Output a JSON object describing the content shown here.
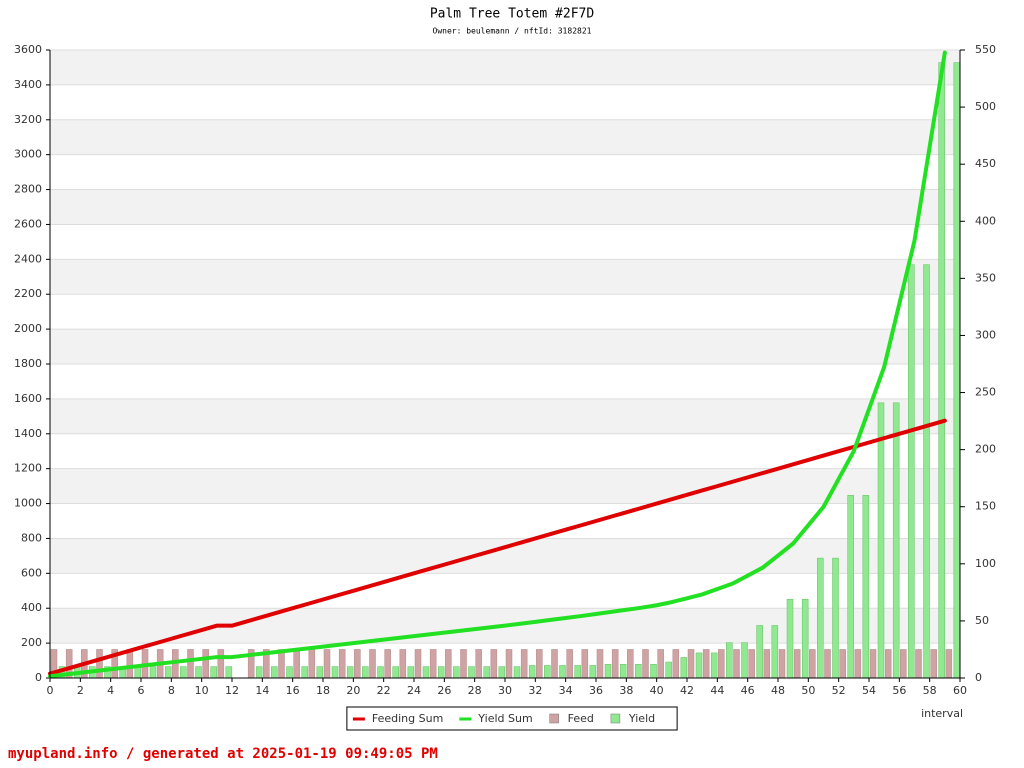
{
  "chart_data": {
    "type": "combo",
    "title": "Palm Tree Totem #2F7D",
    "subtitle": "Owner: beulemann / nftId: 3182821",
    "x_label": "interval",
    "x": [
      0,
      1,
      2,
      3,
      4,
      5,
      6,
      7,
      8,
      9,
      10,
      11,
      12,
      13,
      14,
      15,
      16,
      17,
      18,
      19,
      20,
      21,
      22,
      23,
      24,
      25,
      26,
      27,
      28,
      29,
      30,
      31,
      32,
      33,
      34,
      35,
      36,
      37,
      38,
      39,
      40,
      41,
      42,
      43,
      44,
      45,
      46,
      47,
      48,
      49,
      50,
      51,
      52,
      53,
      54,
      55,
      56,
      57,
      58,
      59
    ],
    "xlim": [
      0,
      60
    ],
    "xticks": [
      0,
      2,
      4,
      6,
      8,
      10,
      12,
      14,
      16,
      18,
      20,
      22,
      24,
      26,
      28,
      30,
      32,
      34,
      36,
      38,
      40,
      42,
      44,
      46,
      48,
      50,
      52,
      54,
      56,
      58,
      60
    ],
    "ylim": [
      0,
      3600
    ],
    "yticks": [
      0,
      200,
      400,
      600,
      800,
      1000,
      1200,
      1400,
      1600,
      1800,
      2000,
      2200,
      2400,
      2600,
      2800,
      3000,
      3200,
      3400,
      3600
    ],
    "y2lim": [
      0,
      550
    ],
    "y2ticks": [
      0,
      50,
      100,
      150,
      200,
      250,
      300,
      350,
      400,
      450,
      500,
      550
    ],
    "grid": true,
    "legend": "bottom",
    "series": [
      {
        "name": "Feeding Sum",
        "kind": "line",
        "color": "#e00000",
        "values": [
          25,
          50,
          75,
          100,
          125,
          150,
          175,
          200,
          225,
          250,
          275,
          300,
          300,
          325,
          350,
          375,
          400,
          425,
          450,
          475,
          500,
          525,
          550,
          575,
          600,
          625,
          650,
          675,
          700,
          725,
          750,
          775,
          800,
          825,
          850,
          875,
          900,
          925,
          950,
          975,
          1000,
          1025,
          1050,
          1075,
          1100,
          1125,
          1150,
          1175,
          1200,
          1225,
          1250,
          1275,
          1300,
          1325,
          1350,
          1375,
          1400,
          1425,
          1450,
          1475
        ]
      },
      {
        "name": "Yield Sum",
        "kind": "line",
        "color": "#22e022",
        "values": [
          10,
          20,
          30,
          40,
          50,
          60,
          70,
          80,
          90,
          100,
          110,
          120,
          120,
          130,
          140,
          150,
          160,
          170,
          180,
          190,
          200,
          210,
          220,
          230,
          240,
          250,
          260,
          270,
          280,
          290,
          300,
          311,
          322,
          333,
          344,
          355,
          367,
          379,
          391,
          403,
          417,
          435,
          457,
          479,
          510,
          541,
          587,
          633,
          702,
          771,
          876,
          981,
          1141,
          1301,
          1542,
          1783,
          2145,
          2507,
          3046,
          3585
        ]
      },
      {
        "name": "Feed",
        "kind": "bar",
        "axis": "y2",
        "color": "#cfa3a3",
        "values": [
          25,
          25,
          25,
          25,
          25,
          25,
          25,
          25,
          25,
          25,
          25,
          25,
          0,
          25,
          25,
          25,
          25,
          25,
          25,
          25,
          25,
          25,
          25,
          25,
          25,
          25,
          25,
          25,
          25,
          25,
          25,
          25,
          25,
          25,
          25,
          25,
          25,
          25,
          25,
          25,
          25,
          25,
          25,
          25,
          25,
          25,
          25,
          25,
          25,
          25,
          25,
          25,
          25,
          25,
          25,
          25,
          25,
          25,
          25,
          25
        ]
      },
      {
        "name": "Yield",
        "kind": "bar",
        "axis": "y2",
        "color": "#90e890",
        "values": [
          10,
          10,
          10,
          10,
          10,
          10,
          10,
          10,
          10,
          10,
          10,
          10,
          0,
          10,
          10,
          10,
          10,
          10,
          10,
          10,
          10,
          10,
          10,
          10,
          10,
          10,
          10,
          10,
          10,
          10,
          10,
          11,
          11,
          11,
          11,
          11,
          12,
          12,
          12,
          12,
          14,
          18,
          22,
          22,
          31,
          31,
          46,
          46,
          69,
          69,
          105,
          105,
          160,
          160,
          241,
          241,
          362,
          362,
          539,
          539
        ]
      }
    ]
  },
  "footer": "myupland.info / generated at 2025-01-19 09:49:05 PM"
}
